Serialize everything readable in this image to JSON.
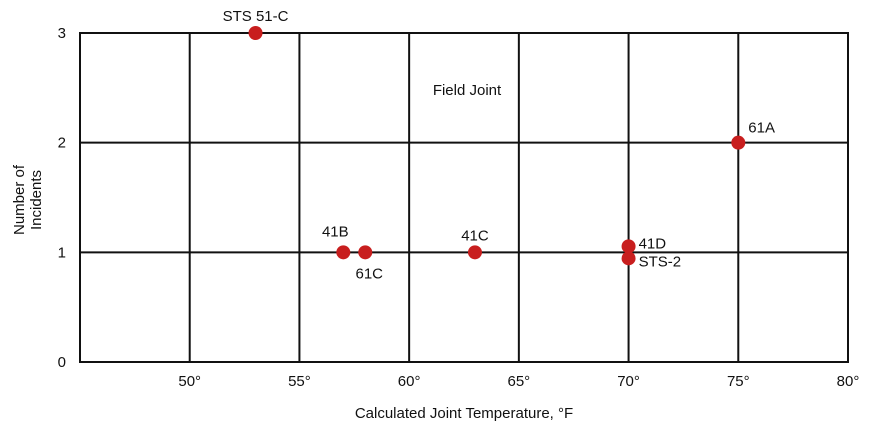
{
  "chart_data": {
    "type": "scatter",
    "xlabel": "Calculated Joint Temperature, °F",
    "ylabel_lines": [
      "Number of",
      "Incidents"
    ],
    "annotation": "Field Joint",
    "xlim": [
      45,
      80
    ],
    "ylim": [
      0,
      3
    ],
    "x_ticks": [
      {
        "value": 50,
        "label": "50°"
      },
      {
        "value": 55,
        "label": "55°"
      },
      {
        "value": 60,
        "label": "60°"
      },
      {
        "value": 65,
        "label": "65°"
      },
      {
        "value": 70,
        "label": "70°"
      },
      {
        "value": 75,
        "label": "75°"
      },
      {
        "value": 80,
        "label": "80°"
      }
    ],
    "y_ticks": [
      {
        "value": 0,
        "label": "0"
      },
      {
        "value": 1,
        "label": "1"
      },
      {
        "value": 2,
        "label": "2"
      },
      {
        "value": 3,
        "label": "3"
      }
    ],
    "grid": true,
    "marker_color": "#c81e1e",
    "points": [
      {
        "label": "STS 51-C",
        "x": 53,
        "y": 3,
        "label_position": "above"
      },
      {
        "label": "41B",
        "x": 57,
        "y": 1,
        "label_position": "above-left"
      },
      {
        "label": "61C",
        "x": 58,
        "y": 1,
        "label_position": "below"
      },
      {
        "label": "41C",
        "x": 63,
        "y": 1,
        "label_position": "above"
      },
      {
        "label": "41D",
        "x": 70,
        "y": 1,
        "label_position": "upper-right"
      },
      {
        "label": "STS-2",
        "x": 70,
        "y": 1,
        "label_position": "lower-right"
      },
      {
        "label": "61A",
        "x": 75,
        "y": 2,
        "label_position": "upper-right"
      }
    ]
  }
}
